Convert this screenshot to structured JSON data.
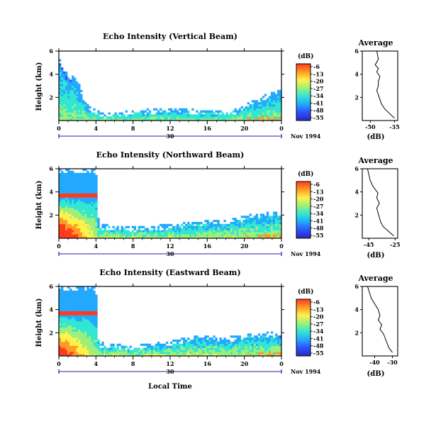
{
  "figure": {
    "xlabel": "Local Time",
    "date_label": "30",
    "date_text": "Nov 1994",
    "ylabel": "Height (km)",
    "colorbar_unit": "(dB)",
    "profile_title": "Average",
    "profile_xlabel": "(dB)"
  },
  "colormap": {
    "stops": [
      "#2a2ab8",
      "#2e50ff",
      "#22a8ff",
      "#32e6d2",
      "#9cf07a",
      "#fff24a",
      "#ff9a28",
      "#ff3a1c"
    ],
    "tick_labels": [
      "-6",
      "-13",
      "-20",
      "-27",
      "-34",
      "-41",
      "-48",
      "-55"
    ]
  },
  "chart_data": [
    {
      "type": "heatmap",
      "title": "Echo Intensity (Vertical Beam)",
      "x_ticks": [
        "0",
        "4",
        "8",
        "12",
        "16",
        "20",
        "0"
      ],
      "y_ticks": [
        "6",
        "4",
        "2"
      ],
      "xlim": [
        0,
        24
      ],
      "ylim": [
        0,
        6
      ],
      "echo_top_km": [
        [
          0,
          5.5
        ],
        [
          1,
          4.0
        ],
        [
          2,
          3.6
        ],
        [
          3,
          1.4
        ],
        [
          5,
          0.6
        ],
        [
          8,
          0.9
        ],
        [
          12,
          1.1
        ],
        [
          16,
          0.9
        ],
        [
          19,
          1.0
        ],
        [
          21,
          1.8
        ],
        [
          24,
          2.8
        ]
      ],
      "strong_core_db": -27
    },
    {
      "type": "line",
      "title": "Average",
      "x_ticks": [
        "-50",
        "-35"
      ],
      "y_ticks": [
        "6",
        "4",
        "2"
      ],
      "xlim": [
        -55,
        -33
      ],
      "ylim": [
        0,
        6
      ],
      "x": [
        -46,
        -45,
        -47,
        -45,
        -46,
        -44,
        -45,
        -45,
        -46,
        -45,
        -44,
        -43,
        -41,
        -38,
        -35
      ],
      "y": [
        6.0,
        5.3,
        4.8,
        4.5,
        4.2,
        3.8,
        3.4,
        3.0,
        2.6,
        2.2,
        1.8,
        1.4,
        1.0,
        0.6,
        0.2
      ]
    },
    {
      "type": "heatmap",
      "title": "Echo Intensity (Northward Beam)",
      "x_ticks": [
        "0",
        "4",
        "8",
        "12",
        "16",
        "20",
        "0"
      ],
      "y_ticks": [
        "6",
        "4",
        "2"
      ],
      "xlim": [
        0,
        24
      ],
      "ylim": [
        0,
        6
      ],
      "echo_top_km": [
        [
          0,
          6.0
        ],
        [
          4,
          6.0
        ],
        [
          4.3,
          1.2
        ],
        [
          8,
          1.0
        ],
        [
          12,
          1.2
        ],
        [
          15,
          1.5
        ],
        [
          18,
          1.6
        ],
        [
          21,
          2.1
        ],
        [
          24,
          2.4
        ]
      ],
      "strong_core_db": -6
    },
    {
      "type": "line",
      "title": "Average",
      "x_ticks": [
        "-45",
        "-25"
      ],
      "y_ticks": [
        "6",
        "4",
        "2"
      ],
      "xlim": [
        -50,
        -23
      ],
      "ylim": [
        0,
        6
      ],
      "x": [
        -46,
        -44,
        -42,
        -40,
        -38,
        -39,
        -37,
        -39,
        -38,
        -37,
        -36,
        -34,
        -30,
        -26
      ],
      "y": [
        6.0,
        5.0,
        4.5,
        4.2,
        3.9,
        3.5,
        3.0,
        2.6,
        2.2,
        1.8,
        1.4,
        1.0,
        0.6,
        0.2
      ]
    },
    {
      "type": "heatmap",
      "title": "Echo Intensity (Eastward Beam)",
      "x_ticks": [
        "0",
        "4",
        "8",
        "12",
        "16",
        "20",
        "0"
      ],
      "y_ticks": [
        "6",
        "4",
        "2"
      ],
      "xlim": [
        0,
        24
      ],
      "ylim": [
        0,
        6
      ],
      "echo_top_km": [
        [
          0,
          6.0
        ],
        [
          4,
          6.0
        ],
        [
          4.3,
          1.2
        ],
        [
          8,
          0.9
        ],
        [
          12,
          1.3
        ],
        [
          15,
          1.8
        ],
        [
          18,
          1.6
        ],
        [
          21,
          2.0
        ],
        [
          24,
          2.1
        ]
      ],
      "strong_core_db": -13
    },
    {
      "type": "line",
      "title": "Average",
      "x_ticks": [
        "-40",
        "-30"
      ],
      "y_ticks": [
        "6",
        "4",
        "2"
      ],
      "xlim": [
        -47,
        -27
      ],
      "ylim": [
        0,
        6
      ],
      "x": [
        -44,
        -42,
        -40,
        -38,
        -37,
        -38,
        -36,
        -37,
        -35,
        -34,
        -33,
        -32,
        -30
      ],
      "y": [
        6.0,
        5.0,
        4.5,
        4.0,
        3.5,
        3.1,
        2.7,
        2.3,
        1.9,
        1.5,
        1.1,
        0.7,
        0.3
      ]
    }
  ]
}
